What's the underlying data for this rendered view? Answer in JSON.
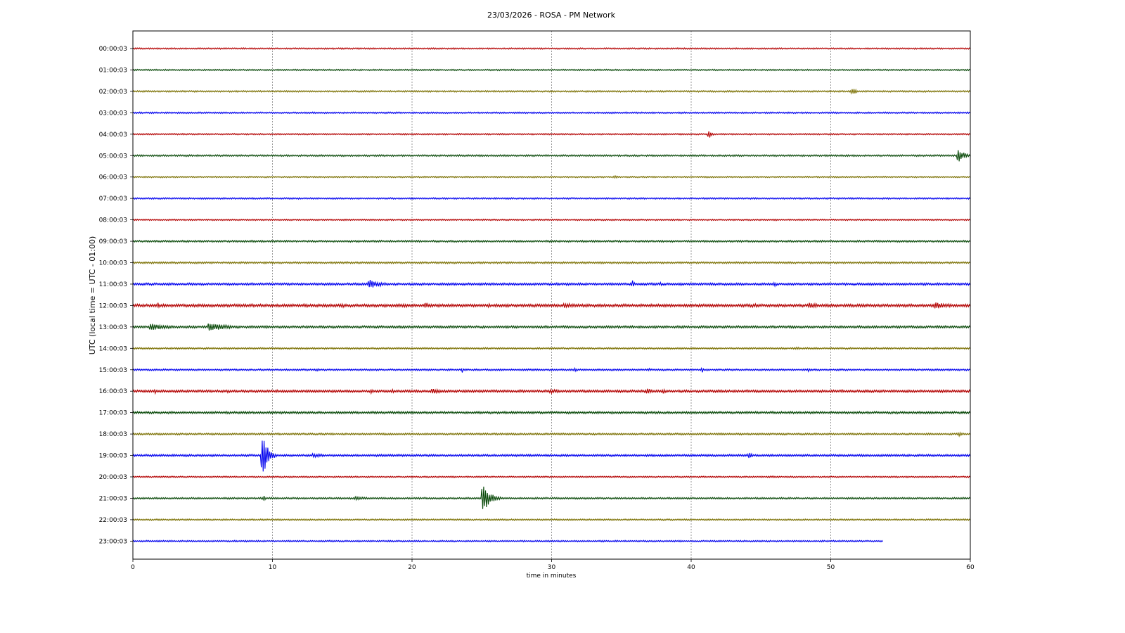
{
  "chart_data": {
    "type": "line",
    "title": "23/03/2026 - ROSA - PM Network",
    "xlabel": "time in minutes",
    "ylabel": "UTC (local time = UTC - 01:00)",
    "xlim": [
      0,
      60
    ],
    "x_ticks": [
      0,
      10,
      20,
      30,
      40,
      50,
      60
    ],
    "grid": "vertical dashed at x ticks",
    "row_colors": [
      "#b30000",
      "#0a4a0a",
      "#7a6f00",
      "#0000ee"
    ],
    "rows": [
      {
        "label": "00:00:03",
        "noise": 1.0,
        "events": []
      },
      {
        "label": "01:00:03",
        "noise": 1.0,
        "events": []
      },
      {
        "label": "02:00:03",
        "noise": 1.1,
        "events": [
          {
            "t": 51.6,
            "amp": 5,
            "dur": 0.5
          }
        ]
      },
      {
        "label": "03:00:03",
        "noise": 1.1,
        "events": []
      },
      {
        "label": "04:00:03",
        "noise": 1.0,
        "events": [
          {
            "t": 41.3,
            "amp": 6,
            "dur": 0.4
          }
        ]
      },
      {
        "label": "05:00:03",
        "noise": 1.2,
        "events": [
          {
            "t": 59.2,
            "amp": 9,
            "dur": 0.9
          }
        ]
      },
      {
        "label": "06:00:03",
        "noise": 1.0,
        "events": [
          {
            "t": 34.5,
            "amp": 2,
            "dur": 1.0
          }
        ]
      },
      {
        "label": "07:00:03",
        "noise": 1.1,
        "events": []
      },
      {
        "label": "08:00:03",
        "noise": 1.0,
        "events": []
      },
      {
        "label": "09:00:03",
        "noise": 1.3,
        "events": []
      },
      {
        "label": "10:00:03",
        "noise": 1.3,
        "events": []
      },
      {
        "label": "11:00:03",
        "noise": 1.6,
        "events": [
          {
            "t": 17.0,
            "amp": 6,
            "dur": 2.0
          },
          {
            "t": 35.8,
            "amp": 6,
            "dur": 0.3
          },
          {
            "t": 37.8,
            "amp": 3,
            "dur": 0.3
          },
          {
            "t": 46.0,
            "amp": 3,
            "dur": 0.6
          }
        ]
      },
      {
        "label": "12:00:03",
        "noise": 2.0,
        "events": [
          {
            "t": 1.8,
            "amp": 4,
            "dur": 0.3
          },
          {
            "t": 2.8,
            "amp": 3,
            "dur": 0.3
          },
          {
            "t": 15.0,
            "amp": 3,
            "dur": 1.2
          },
          {
            "t": 19.5,
            "amp": 3,
            "dur": 1.0
          },
          {
            "t": 21.0,
            "amp": 5,
            "dur": 0.5
          },
          {
            "t": 25.5,
            "amp": 4,
            "dur": 0.3
          },
          {
            "t": 31.0,
            "amp": 4,
            "dur": 2.0
          },
          {
            "t": 33.5,
            "amp": 3,
            "dur": 0.3
          },
          {
            "t": 44.5,
            "amp": 3,
            "dur": 1.5
          },
          {
            "t": 48.5,
            "amp": 4,
            "dur": 2.0
          },
          {
            "t": 57.5,
            "amp": 5,
            "dur": 2.5
          }
        ]
      },
      {
        "label": "13:00:03",
        "noise": 1.6,
        "events": [
          {
            "t": 1.3,
            "amp": 5,
            "dur": 2.6
          },
          {
            "t": 5.5,
            "amp": 6,
            "dur": 2.8
          },
          {
            "t": 9.5,
            "amp": 2,
            "dur": 3.0
          }
        ]
      },
      {
        "label": "14:00:03",
        "noise": 1.2,
        "events": [
          {
            "t": 47.5,
            "amp": 2,
            "dur": 1.5
          }
        ]
      },
      {
        "label": "15:00:03",
        "noise": 1.2,
        "events": [
          {
            "t": 13.2,
            "amp": 3,
            "dur": 0.2
          },
          {
            "t": 23.6,
            "amp": 4,
            "dur": 0.2
          },
          {
            "t": 31.7,
            "amp": 3,
            "dur": 0.3
          },
          {
            "t": 37.0,
            "amp": 3,
            "dur": 0.2
          },
          {
            "t": 40.8,
            "amp": 4,
            "dur": 0.3
          },
          {
            "t": 48.4,
            "amp": 3,
            "dur": 0.2
          }
        ]
      },
      {
        "label": "16:00:03",
        "noise": 1.7,
        "events": [
          {
            "t": 1.6,
            "amp": 4,
            "dur": 0.2
          },
          {
            "t": 6.8,
            "amp": 3,
            "dur": 0.2
          },
          {
            "t": 10.3,
            "amp": 3,
            "dur": 0.2
          },
          {
            "t": 17.1,
            "amp": 4,
            "dur": 0.3
          },
          {
            "t": 18.6,
            "amp": 4,
            "dur": 0.3
          },
          {
            "t": 21.5,
            "amp": 4,
            "dur": 1.5
          },
          {
            "t": 30.0,
            "amp": 3,
            "dur": 3.0
          },
          {
            "t": 36.9,
            "amp": 5,
            "dur": 0.6
          },
          {
            "t": 38.0,
            "amp": 4,
            "dur": 0.5
          },
          {
            "t": 47.5,
            "amp": 2,
            "dur": 1.0
          }
        ]
      },
      {
        "label": "17:00:03",
        "noise": 1.6,
        "events": []
      },
      {
        "label": "18:00:03",
        "noise": 1.3,
        "events": [
          {
            "t": 59.2,
            "amp": 3,
            "dur": 0.6
          }
        ]
      },
      {
        "label": "19:00:03",
        "noise": 1.5,
        "events": [
          {
            "t": 9.3,
            "amp": 36,
            "dur": 0.7
          },
          {
            "t": 13.0,
            "amp": 3,
            "dur": 2.0
          },
          {
            "t": 17.5,
            "amp": 2,
            "dur": 3.0
          },
          {
            "t": 44.2,
            "amp": 5,
            "dur": 0.4
          }
        ]
      },
      {
        "label": "20:00:03",
        "noise": 1.0,
        "events": [
          {
            "t": 45.9,
            "amp": 2,
            "dur": 0.4
          }
        ]
      },
      {
        "label": "21:00:03",
        "noise": 1.2,
        "events": [
          {
            "t": 9.4,
            "amp": 4,
            "dur": 0.3
          },
          {
            "t": 16.0,
            "amp": 3,
            "dur": 2.0
          },
          {
            "t": 25.1,
            "amp": 20,
            "dur": 1.0
          }
        ]
      },
      {
        "label": "22:00:03",
        "noise": 1.1,
        "events": []
      },
      {
        "label": "23:00:03",
        "noise": 1.1,
        "end": 53.7,
        "events": []
      }
    ]
  }
}
